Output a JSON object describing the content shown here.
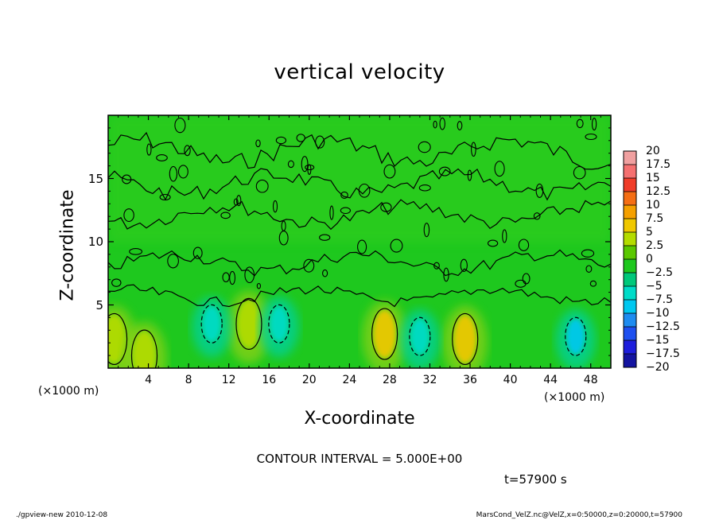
{
  "chart_data": {
    "type": "heatmap",
    "title": "vertical velocity",
    "xlabel": "X-coordinate",
    "ylabel": "Z-coordinate",
    "x_scale_label": "(×1000 m)",
    "x_ticks": [
      "4",
      "8",
      "12",
      "16",
      "20",
      "24",
      "28",
      "32",
      "36",
      "40",
      "44",
      "48"
    ],
    "x_tick_values": [
      4,
      8,
      12,
      16,
      20,
      24,
      28,
      32,
      36,
      40,
      44,
      48
    ],
    "y_ticks": [
      "5",
      "10",
      "15"
    ],
    "y_tick_values": [
      5,
      10,
      15
    ],
    "xlim": [
      0,
      50
    ],
    "ylim": [
      0,
      20
    ],
    "colorbar": {
      "labels": [
        "20",
        "17.5",
        "15",
        "12.5",
        "10",
        "7.5",
        "5",
        "2.5",
        "0",
        "−2.5",
        "−5",
        "−7.5",
        "−10",
        "−12.5",
        "−15",
        "−17.5",
        "−20"
      ],
      "values": [
        20,
        17.5,
        15,
        12.5,
        10,
        7.5,
        5,
        2.5,
        0,
        -2.5,
        -5,
        -7.5,
        -10,
        -12.5,
        -15,
        -17.5,
        -20
      ],
      "colors": [
        "#f0a0a0",
        "#f57070",
        "#f03c28",
        "#f56e14",
        "#f5a000",
        "#f0c800",
        "#b4dc00",
        "#5ac800",
        "#1ec81e",
        "#00c87a",
        "#00dcc8",
        "#00c8f0",
        "#1e8cf0",
        "#1e50f0",
        "#1e1edc",
        "#1414a0",
        "#6e1ea0"
      ]
    },
    "background_value": 0,
    "features": [
      {
        "type": "updraft",
        "x": 0.6,
        "z": 2.3,
        "w": 5
      },
      {
        "type": "updraft",
        "x": 3.6,
        "z": 1.0,
        "w": 5
      },
      {
        "type": "updraft",
        "x": 14.0,
        "z": 3.5,
        "w": 5
      },
      {
        "type": "updraft",
        "x": 27.5,
        "z": 2.7,
        "w": 7.5
      },
      {
        "type": "updraft",
        "x": 35.5,
        "z": 2.3,
        "w": 7.5
      },
      {
        "type": "downdraft",
        "x": 10.3,
        "z": 3.5,
        "w": -5
      },
      {
        "type": "downdraft",
        "x": 17.0,
        "z": 3.5,
        "w": -5
      },
      {
        "type": "downdraft",
        "x": 31.0,
        "z": 2.5,
        "w": -5
      },
      {
        "type": "downdraft",
        "x": 46.5,
        "z": 2.5,
        "w": -7.5
      }
    ],
    "contour_interval": "CONTOUR INTERVAL =  5.000E+00",
    "time_label": "t=57900 s"
  },
  "footer": {
    "left": "./gpview-new   2010-12-08",
    "right": "MarsCond_VelZ.nc@VelZ,x=0:50000,z=0:20000,t=57900"
  }
}
